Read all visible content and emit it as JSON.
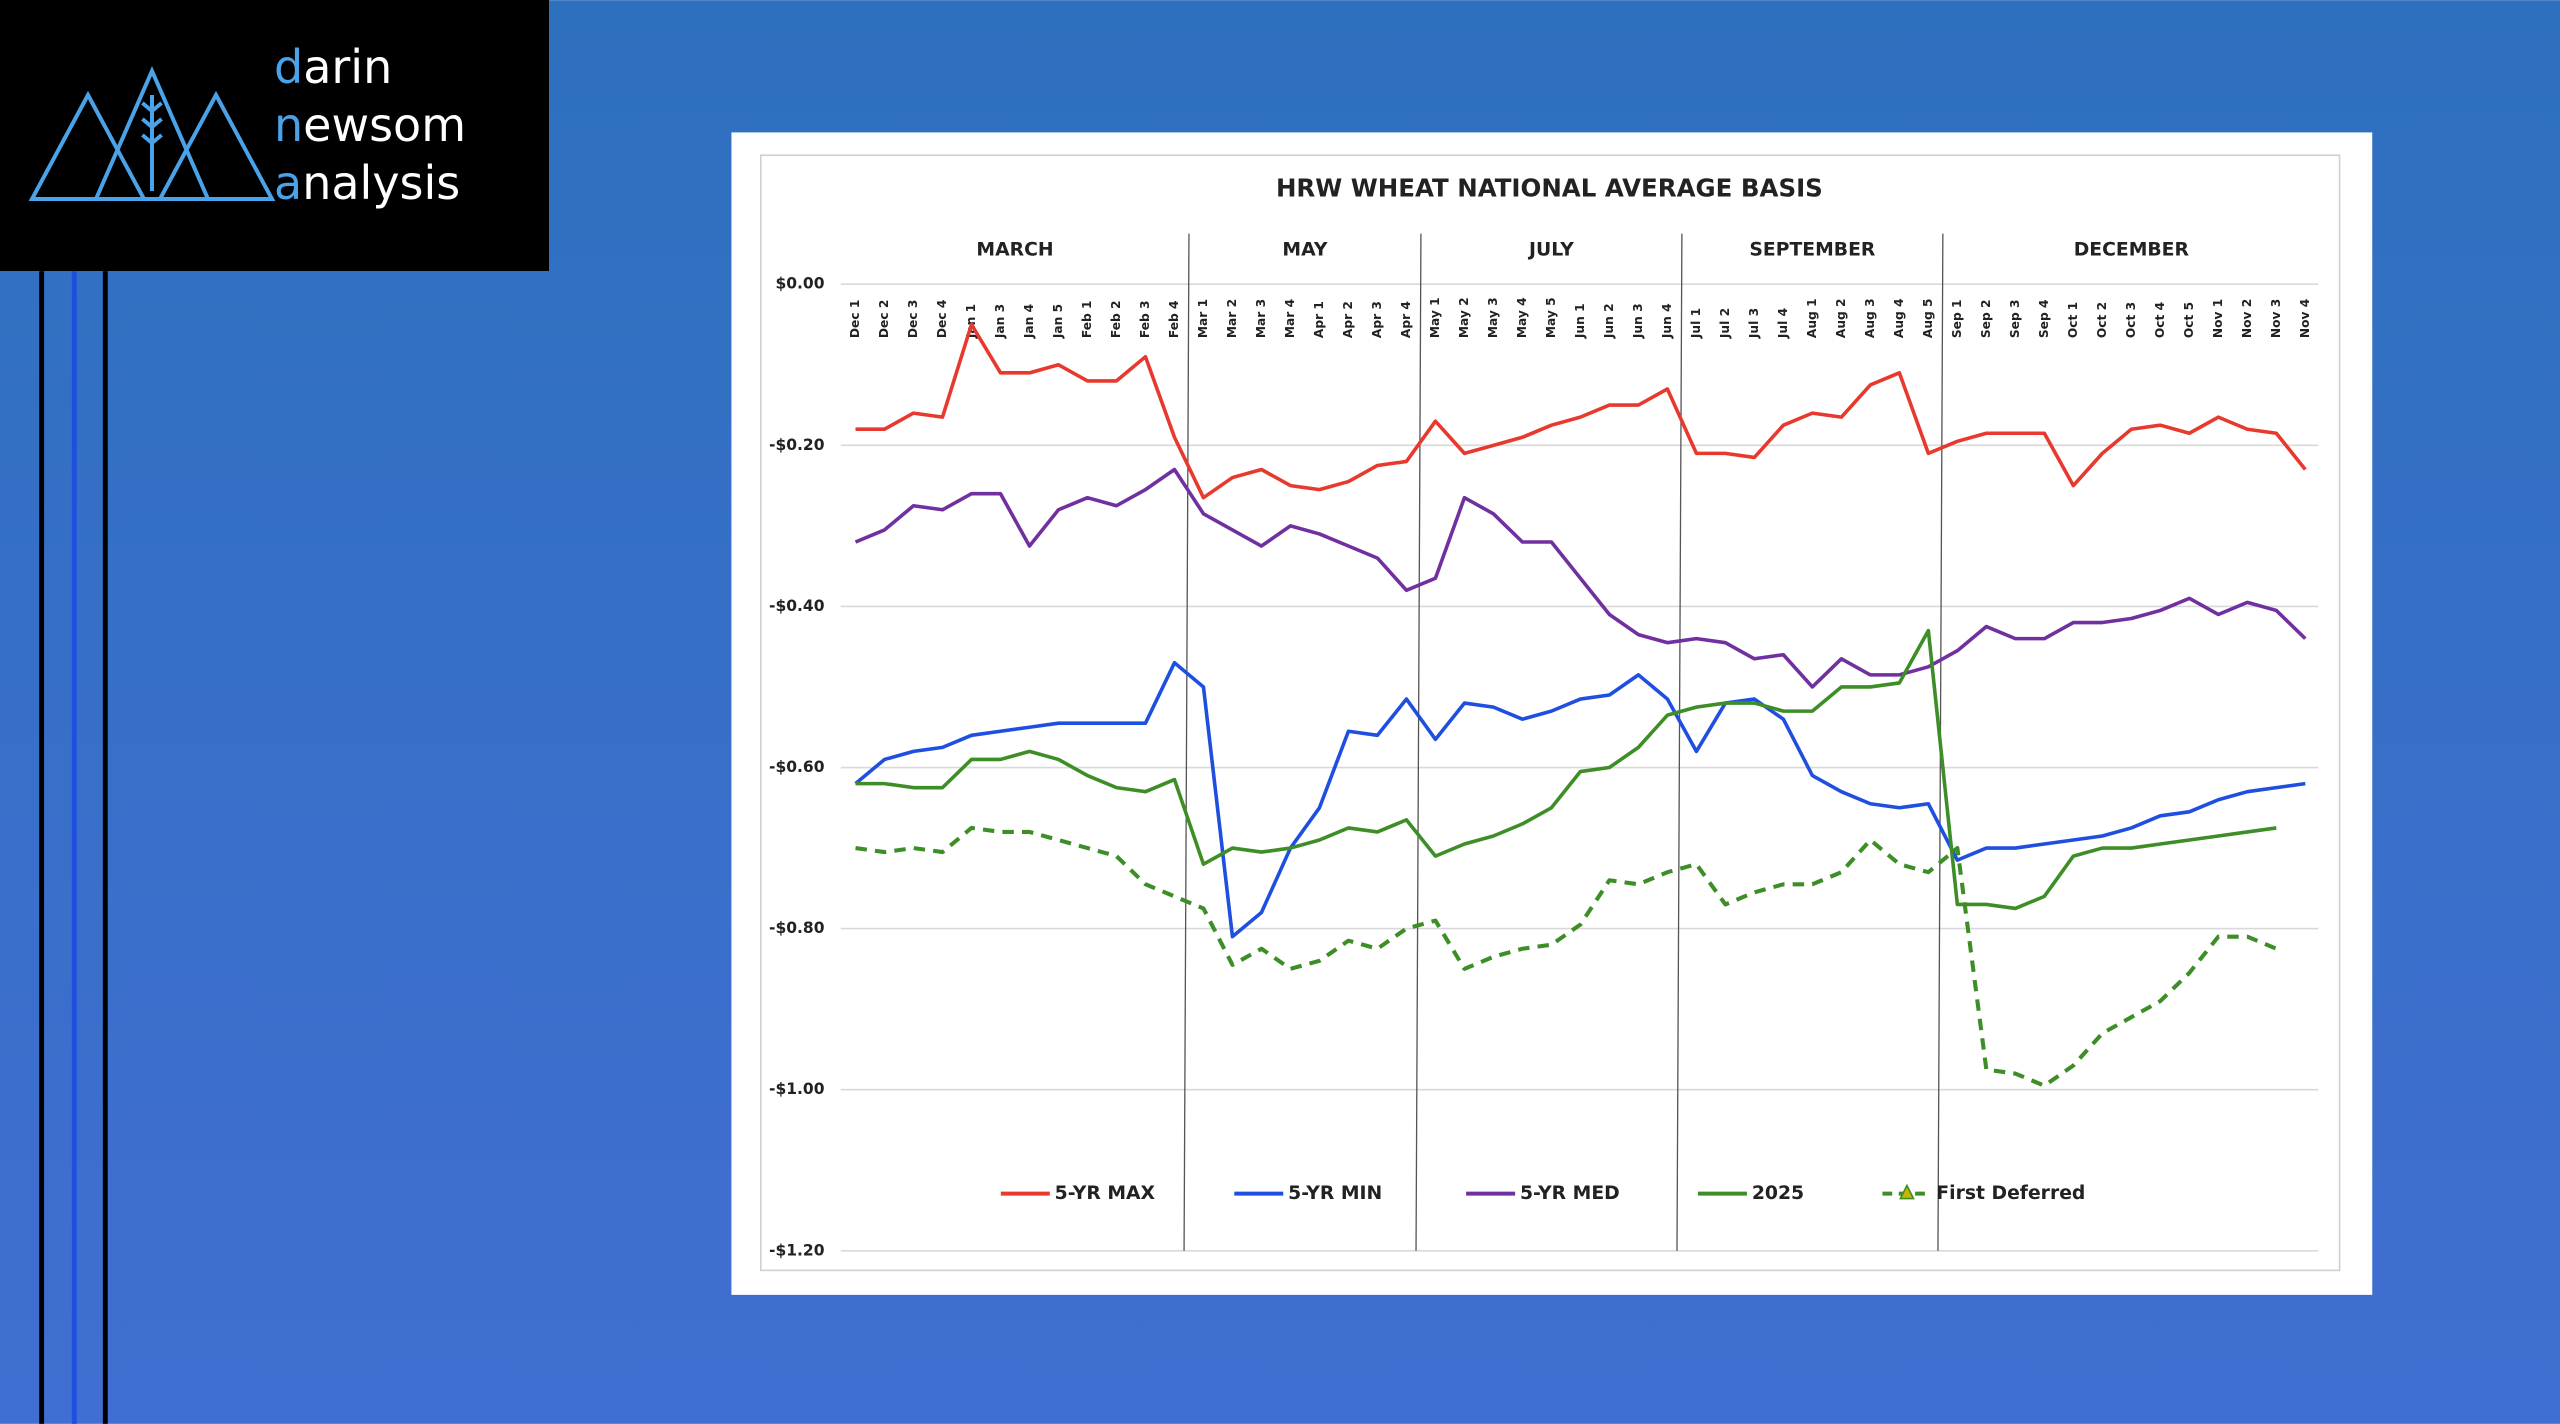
{
  "logo": {
    "lines": [
      "darin",
      "newsom",
      "analysis"
    ]
  },
  "chart_data": {
    "type": "line",
    "title": "HRW WHEAT NATIONAL AVERAGE BASIS",
    "groups": [
      "MARCH",
      "MAY",
      "JULY",
      "SEPTEMBER",
      "DECEMBER"
    ],
    "categories": [
      "Dec 1",
      "Dec 2",
      "Dec 3",
      "Dec 4",
      "Jan 1",
      "Jan 3",
      "Jan 4",
      "Jan 5",
      "Feb 1",
      "Feb 2",
      "Feb 3",
      "Feb 4",
      "Mar 1",
      "Mar 2",
      "Mar 3",
      "Mar 4",
      "Apr 1",
      "Apr 2",
      "Apr 3",
      "Apr 4",
      "May 1",
      "May 2",
      "May 3",
      "May 4",
      "May 5",
      "Jun 1",
      "Jun 2",
      "Jun 3",
      "Jun 4",
      "Jul 1",
      "Jul 2",
      "Jul 3",
      "Jul 4",
      "Aug 1",
      "Aug 2",
      "Aug 3",
      "Aug 4",
      "Aug 5",
      "Sep 1",
      "Sep 2",
      "Sep 3",
      "Sep 4",
      "Oct 1",
      "Oct 2",
      "Oct 3",
      "Oct 4",
      "Oct 5",
      "Nov 1",
      "Nov 2",
      "Nov 3",
      "Nov 4"
    ],
    "ylim": [
      -1.2,
      0
    ],
    "yticks": [
      {
        "value": 0,
        "label": "$0.00"
      },
      {
        "value": -0.2,
        "label": "-$0.20"
      },
      {
        "value": -0.4,
        "label": "-$0.40"
      },
      {
        "value": -0.6,
        "label": "-$0.60"
      },
      {
        "value": -0.8,
        "label": "-$0.80"
      },
      {
        "value": -1.0,
        "label": "-$1.00"
      },
      {
        "value": -1.2,
        "label": "-$1.20"
      }
    ],
    "grid": true,
    "legend": "bottom",
    "series": [
      {
        "name": "5-YR MAX",
        "color": "#e8392e",
        "dashed": false,
        "values": [
          -0.18,
          -0.18,
          -0.16,
          -0.165,
          -0.05,
          -0.11,
          -0.11,
          -0.1,
          -0.12,
          -0.12,
          -0.09,
          -0.19,
          -0.265,
          -0.24,
          -0.23,
          -0.25,
          -0.255,
          -0.245,
          -0.225,
          -0.22,
          -0.17,
          -0.21,
          -0.2,
          -0.19,
          -0.175,
          -0.165,
          -0.15,
          -0.15,
          -0.13,
          -0.21,
          -0.21,
          -0.215,
          -0.175,
          -0.16,
          -0.165,
          -0.125,
          -0.11,
          -0.21,
          -0.195,
          -0.185,
          -0.185,
          -0.185,
          -0.25,
          -0.21,
          -0.18,
          -0.175,
          -0.185,
          -0.165,
          -0.18,
          -0.185,
          -0.23
        ]
      },
      {
        "name": "5-YR MIN",
        "color": "#1f4fe0",
        "dashed": false,
        "values": [
          -0.62,
          -0.59,
          -0.58,
          -0.575,
          -0.56,
          -0.555,
          -0.55,
          -0.545,
          -0.545,
          -0.545,
          -0.545,
          -0.47,
          -0.5,
          -0.81,
          -0.78,
          -0.7,
          -0.65,
          -0.555,
          -0.56,
          -0.515,
          -0.565,
          -0.52,
          -0.525,
          -0.54,
          -0.53,
          -0.515,
          -0.51,
          -0.485,
          -0.515,
          -0.58,
          -0.52,
          -0.515,
          -0.54,
          -0.61,
          -0.63,
          -0.645,
          -0.65,
          -0.645,
          -0.715,
          -0.7,
          -0.7,
          -0.695,
          -0.69,
          -0.685,
          -0.675,
          -0.66,
          -0.655,
          -0.64,
          -0.63,
          -0.625,
          -0.62
        ]
      },
      {
        "name": "5-YR MED",
        "color": "#7030a0",
        "dashed": false,
        "values": [
          -0.32,
          -0.305,
          -0.275,
          -0.28,
          -0.26,
          -0.26,
          -0.325,
          -0.28,
          -0.265,
          -0.275,
          -0.255,
          -0.23,
          -0.285,
          -0.305,
          -0.325,
          -0.3,
          -0.31,
          -0.325,
          -0.34,
          -0.38,
          -0.365,
          -0.265,
          -0.285,
          -0.32,
          -0.32,
          -0.365,
          -0.41,
          -0.435,
          -0.445,
          -0.44,
          -0.445,
          -0.465,
          -0.46,
          -0.5,
          -0.465,
          -0.485,
          -0.485,
          -0.475,
          -0.455,
          -0.425,
          -0.44,
          -0.44,
          -0.42,
          -0.42,
          -0.415,
          -0.405,
          -0.39,
          -0.41,
          -0.395,
          -0.405,
          -0.44
        ]
      },
      {
        "name": "2025",
        "color": "#3e8e27",
        "dashed": false,
        "values": [
          -0.62,
          -0.62,
          -0.625,
          -0.625,
          -0.59,
          -0.59,
          -0.58,
          -0.59,
          -0.61,
          -0.625,
          -0.63,
          -0.615,
          -0.72,
          -0.7,
          -0.705,
          -0.7,
          -0.69,
          -0.675,
          -0.68,
          -0.665,
          -0.71,
          -0.695,
          -0.685,
          -0.67,
          -0.65,
          -0.605,
          -0.6,
          -0.575,
          -0.535,
          -0.525,
          -0.52,
          -0.52,
          -0.53,
          -0.53,
          -0.5,
          -0.5,
          -0.495,
          -0.43,
          -0.77,
          -0.77,
          -0.775,
          -0.76,
          -0.71,
          -0.7,
          -0.7,
          -0.695,
          -0.69,
          -0.685,
          -0.68,
          -0.675,
          null
        ]
      },
      {
        "name": "First Deferred",
        "color": "#3e8e27",
        "dashed": true,
        "values": [
          -0.7,
          -0.705,
          -0.7,
          -0.705,
          -0.675,
          -0.68,
          -0.68,
          -0.69,
          -0.7,
          -0.71,
          -0.745,
          -0.76,
          -0.775,
          -0.845,
          -0.825,
          -0.85,
          -0.84,
          -0.815,
          -0.825,
          -0.8,
          -0.79,
          -0.85,
          -0.835,
          -0.825,
          -0.82,
          -0.795,
          -0.74,
          -0.745,
          -0.73,
          -0.72,
          -0.77,
          -0.755,
          -0.745,
          -0.745,
          -0.73,
          -0.69,
          -0.72,
          -0.73,
          -0.7,
          -0.975,
          -0.98,
          -0.995,
          -0.97,
          -0.93,
          -0.91,
          -0.89,
          -0.855,
          -0.81,
          -0.81,
          -0.825,
          null
        ]
      }
    ]
  }
}
